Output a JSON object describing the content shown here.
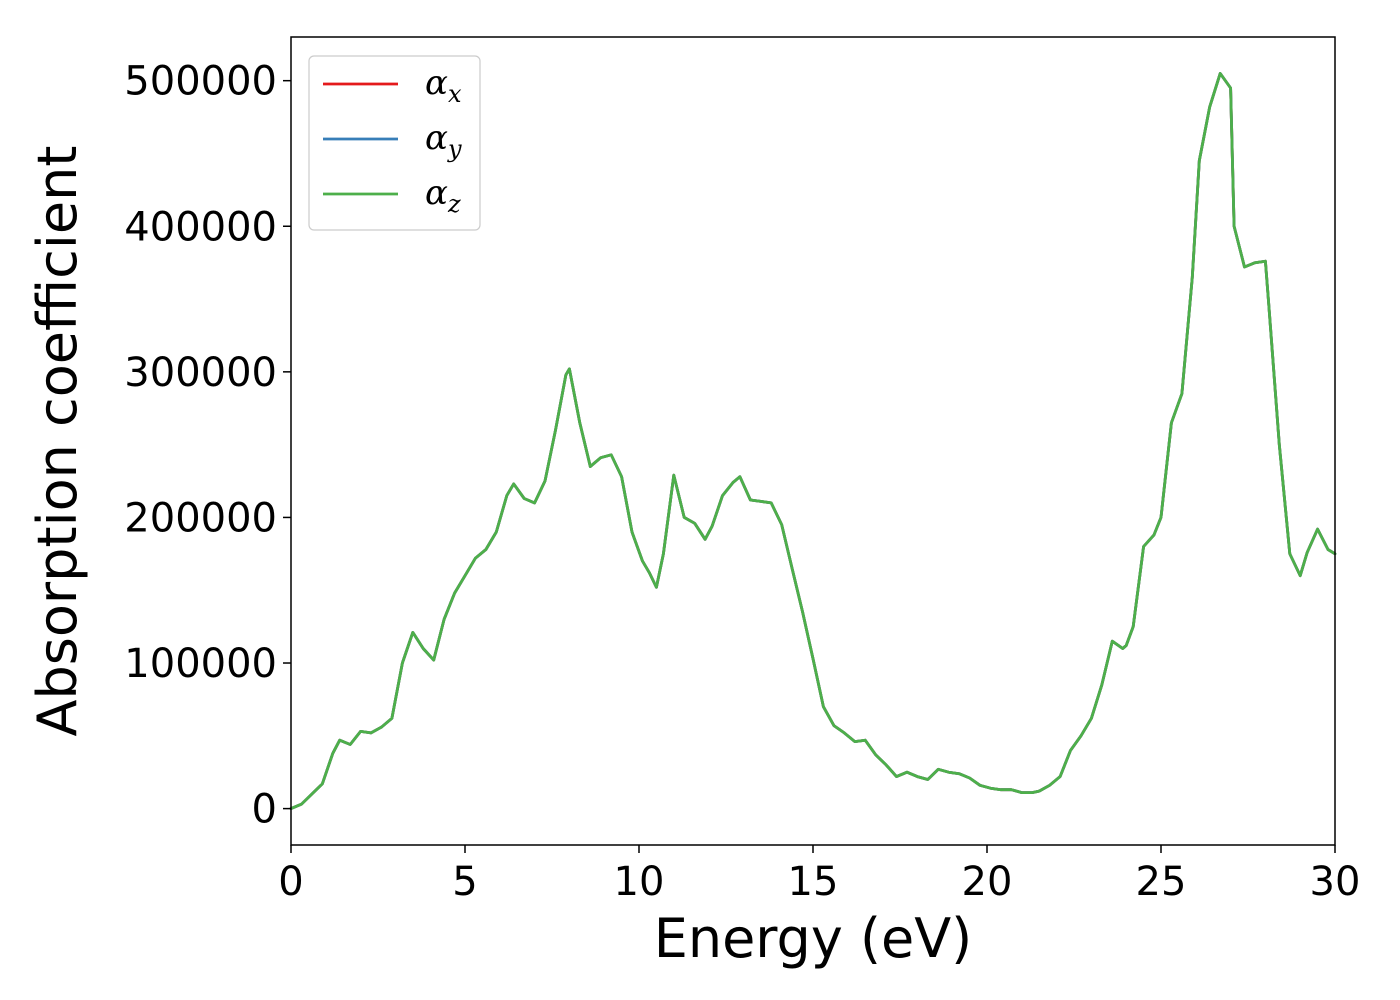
{
  "chart_data": {
    "type": "line",
    "title": "",
    "xlabel": "Energy (eV)",
    "ylabel": "Absorption coefficient",
    "xlim": [
      0,
      30
    ],
    "ylim": [
      -25000,
      530000
    ],
    "xticks": [
      0,
      5,
      10,
      15,
      20,
      25,
      30
    ],
    "yticks": [
      0,
      100000,
      200000,
      300000,
      400000,
      500000
    ],
    "grid": false,
    "legend_position": "top-left",
    "series": [
      {
        "name": "α",
        "subscript": "x",
        "color": "#e41a1c"
      },
      {
        "name": "α",
        "subscript": "y",
        "color": "#377eb8"
      },
      {
        "name": "α",
        "subscript": "z",
        "color": "#4daf4a"
      }
    ],
    "x": [
      0,
      0.3,
      0.6,
      0.9,
      1.2,
      1.4,
      1.7,
      2.0,
      2.3,
      2.6,
      2.9,
      3.2,
      3.5,
      3.8,
      4.1,
      4.4,
      4.7,
      5.0,
      5.3,
      5.6,
      5.9,
      6.2,
      6.4,
      6.7,
      7.0,
      7.3,
      7.6,
      7.9,
      8.0,
      8.3,
      8.6,
      8.9,
      9.2,
      9.5,
      9.8,
      10.1,
      10.3,
      10.5,
      10.7,
      11.0,
      11.3,
      11.6,
      11.9,
      12.1,
      12.4,
      12.7,
      12.9,
      13.2,
      13.5,
      13.8,
      14.1,
      14.4,
      14.7,
      15.0,
      15.3,
      15.6,
      15.9,
      16.2,
      16.5,
      16.8,
      17.1,
      17.4,
      17.7,
      18.0,
      18.3,
      18.6,
      18.9,
      19.2,
      19.5,
      19.8,
      20.1,
      20.4,
      20.7,
      21.0,
      21.3,
      21.5,
      21.8,
      22.1,
      22.4,
      22.7,
      23.0,
      23.3,
      23.6,
      23.9,
      24.0,
      24.2,
      24.5,
      24.8,
      25.0,
      25.3,
      25.6,
      25.9,
      26.1,
      26.4,
      26.7,
      27.0,
      27.1,
      27.4,
      27.7,
      28.0,
      28.1,
      28.4,
      28.7,
      29.0,
      29.2,
      29.5,
      29.8,
      30.0
    ],
    "y": [
      0,
      3000,
      10000,
      17000,
      38000,
      47000,
      44000,
      53000,
      52000,
      56000,
      62000,
      100000,
      121000,
      110000,
      102000,
      130000,
      148000,
      160000,
      172000,
      178000,
      190000,
      215000,
      223000,
      213000,
      210000,
      225000,
      260000,
      298000,
      302000,
      265000,
      235000,
      241000,
      243000,
      228000,
      190000,
      170000,
      162000,
      152000,
      175000,
      229000,
      200000,
      196000,
      185000,
      194000,
      215000,
      224000,
      228000,
      212000,
      211000,
      210000,
      195000,
      165000,
      135000,
      103000,
      70000,
      57000,
      52000,
      46000,
      47000,
      37000,
      30000,
      22000,
      25000,
      22000,
      20000,
      27000,
      25000,
      24000,
      21000,
      16000,
      14000,
      13000,
      13000,
      11000,
      11000,
      12000,
      16000,
      22000,
      40000,
      50000,
      62000,
      85000,
      115000,
      110000,
      112000,
      125000,
      180000,
      188000,
      200000,
      265000,
      285000,
      365000,
      445000,
      482000,
      505000,
      495000,
      400000,
      372000,
      375000,
      376000,
      345000,
      250000,
      175000,
      160000,
      176000,
      192000,
      178000,
      175000
    ]
  }
}
